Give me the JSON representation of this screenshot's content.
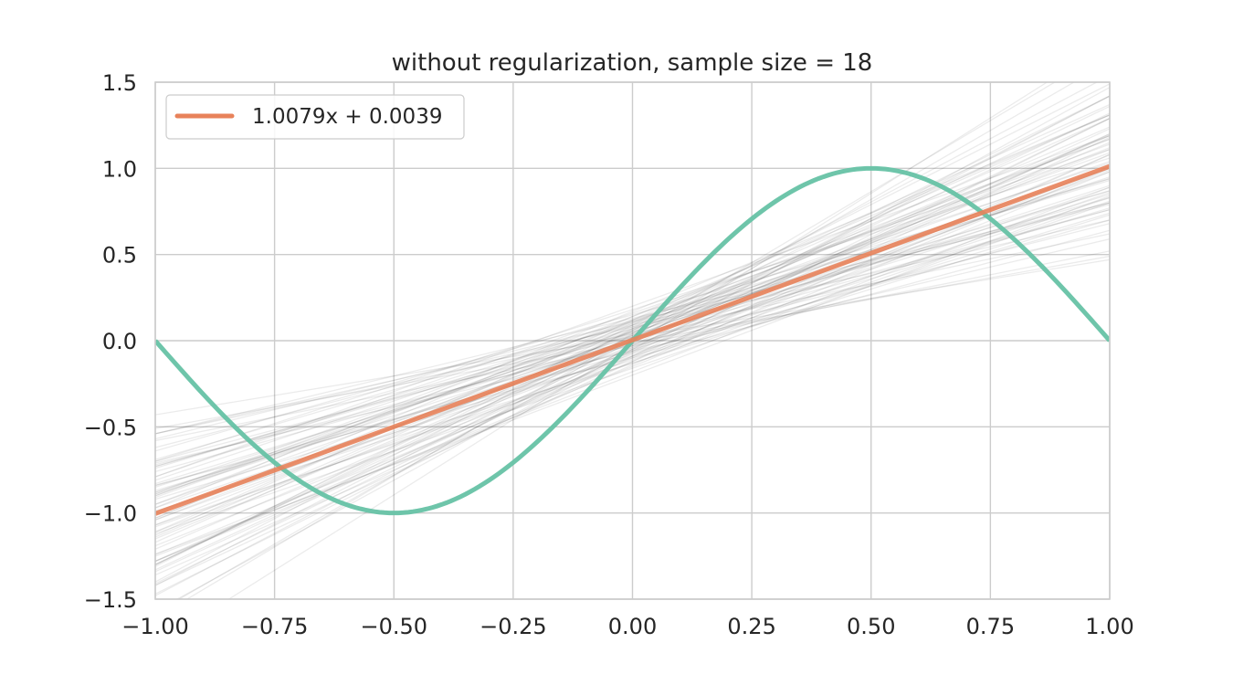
{
  "chart_data": {
    "type": "line",
    "title": "without regularization, sample size = 18",
    "xlabel": "",
    "ylabel": "",
    "xlim": [
      -1.0,
      1.0
    ],
    "ylim": [
      -1.5,
      1.5
    ],
    "x_ticks": [
      "−1.00",
      "−0.75",
      "−0.50",
      "−0.25",
      "0.00",
      "0.25",
      "0.50",
      "0.75",
      "1.00"
    ],
    "x_tick_values": [
      -1.0,
      -0.75,
      -0.5,
      -0.25,
      0.0,
      0.25,
      0.5,
      0.75,
      1.0
    ],
    "y_ticks": [
      "−1.5",
      "−1.0",
      "−0.5",
      "0.0",
      "0.5",
      "1.0",
      "1.5"
    ],
    "y_tick_values": [
      -1.5,
      -1.0,
      -0.5,
      0.0,
      0.5,
      1.0,
      1.5
    ],
    "grid": true,
    "legend_position": "top-left",
    "series": [
      {
        "name": "1.0079x + 0.0039",
        "kind": "mean-fit-line",
        "slope": 1.0079,
        "intercept": 0.0039,
        "color": "#e8825a"
      },
      {
        "kind": "target-function",
        "function": "sin(pi*x)",
        "color": "#66c2a5"
      },
      {
        "kind": "sampled-fit-lines",
        "color": "#000000",
        "opacity": 0.08,
        "lines": [
          {
            "slope": 1.0,
            "intercept": 0.0
          },
          {
            "slope": 0.78,
            "intercept": 0.05
          },
          {
            "slope": 1.24,
            "intercept": -0.04
          },
          {
            "slope": 0.92,
            "intercept": 0.11
          },
          {
            "slope": 1.1,
            "intercept": -0.09
          },
          {
            "slope": 0.7,
            "intercept": -0.02
          },
          {
            "slope": 1.36,
            "intercept": 0.06
          },
          {
            "slope": 0.86,
            "intercept": -0.13
          },
          {
            "slope": 1.17,
            "intercept": 0.14
          },
          {
            "slope": 0.98,
            "intercept": 0.03
          },
          {
            "slope": 1.05,
            "intercept": -0.06
          },
          {
            "slope": 0.62,
            "intercept": 0.08
          },
          {
            "slope": 1.45,
            "intercept": -0.03
          },
          {
            "slope": 0.89,
            "intercept": 0.01
          },
          {
            "slope": 1.21,
            "intercept": 0.1
          },
          {
            "slope": 0.74,
            "intercept": -0.1
          },
          {
            "slope": 1.3,
            "intercept": -0.12
          },
          {
            "slope": 0.95,
            "intercept": 0.16
          },
          {
            "slope": 1.08,
            "intercept": 0.04
          },
          {
            "slope": 0.82,
            "intercept": -0.05
          },
          {
            "slope": 1.6,
            "intercept": 0.02
          },
          {
            "slope": 0.5,
            "intercept": -0.01
          },
          {
            "slope": 1.13,
            "intercept": -0.15
          },
          {
            "slope": 1.02,
            "intercept": 0.12
          },
          {
            "slope": 0.67,
            "intercept": 0.13
          },
          {
            "slope": 1.4,
            "intercept": 0.09
          },
          {
            "slope": 0.91,
            "intercept": -0.08
          },
          {
            "slope": 1.27,
            "intercept": -0.07
          },
          {
            "slope": 0.8,
            "intercept": 0.07
          },
          {
            "slope": 1.15,
            "intercept": 0.0
          },
          {
            "slope": 0.97,
            "intercept": -0.11
          },
          {
            "slope": 1.33,
            "intercept": 0.03
          },
          {
            "slope": 0.58,
            "intercept": 0.04
          },
          {
            "slope": 1.52,
            "intercept": -0.05
          },
          {
            "slope": 0.88,
            "intercept": 0.18
          },
          {
            "slope": 1.07,
            "intercept": -0.18
          },
          {
            "slope": 0.76,
            "intercept": 0.0
          },
          {
            "slope": 1.2,
            "intercept": -0.01
          },
          {
            "slope": 0.94,
            "intercept": 0.06
          },
          {
            "slope": 1.11,
            "intercept": 0.08
          },
          {
            "slope": 0.45,
            "intercept": 0.02
          },
          {
            "slope": 1.75,
            "intercept": -0.02
          },
          {
            "slope": 0.84,
            "intercept": 0.1
          },
          {
            "slope": 1.01,
            "intercept": -0.03
          },
          {
            "slope": 1.25,
            "intercept": 0.12
          },
          {
            "slope": 0.71,
            "intercept": 0.09
          },
          {
            "slope": 1.38,
            "intercept": -0.09
          },
          {
            "slope": 0.99,
            "intercept": 0.2
          },
          {
            "slope": 1.04,
            "intercept": -0.2
          },
          {
            "slope": 0.87,
            "intercept": -0.02
          },
          {
            "slope": 1.19,
            "intercept": 0.05
          },
          {
            "slope": 0.93,
            "intercept": -0.04
          },
          {
            "slope": 1.09,
            "intercept": 0.02
          },
          {
            "slope": 0.65,
            "intercept": -0.06
          },
          {
            "slope": 1.47,
            "intercept": 0.07
          },
          {
            "slope": 0.79,
            "intercept": 0.15
          },
          {
            "slope": 1.22,
            "intercept": -0.14
          },
          {
            "slope": 1.0,
            "intercept": 0.09
          },
          {
            "slope": 0.83,
            "intercept": -0.09
          },
          {
            "slope": 1.31,
            "intercept": 0.01
          },
          {
            "slope": 0.96,
            "intercept": -0.16
          },
          {
            "slope": 1.14,
            "intercept": 0.17
          },
          {
            "slope": 0.73,
            "intercept": 0.03
          },
          {
            "slope": 1.28,
            "intercept": -0.05
          },
          {
            "slope": 0.55,
            "intercept": -0.03
          },
          {
            "slope": 1.65,
            "intercept": 0.04
          },
          {
            "slope": 0.9,
            "intercept": 0.05
          },
          {
            "slope": 1.06,
            "intercept": 0.11
          },
          {
            "slope": 1.18,
            "intercept": -0.1
          },
          {
            "slope": 0.77,
            "intercept": -0.07
          },
          {
            "slope": 1.42,
            "intercept": 0.0
          },
          {
            "slope": 0.85,
            "intercept": 0.02
          },
          {
            "slope": 1.03,
            "intercept": 0.14
          },
          {
            "slope": 0.68,
            "intercept": 0.11
          },
          {
            "slope": 1.35,
            "intercept": -0.06
          },
          {
            "slope": 0.97,
            "intercept": 0.07
          },
          {
            "slope": 1.12,
            "intercept": -0.12
          },
          {
            "slope": 0.81,
            "intercept": 0.12
          },
          {
            "slope": 1.23,
            "intercept": 0.06
          },
          {
            "slope": 0.94,
            "intercept": -0.13
          }
        ]
      }
    ]
  }
}
